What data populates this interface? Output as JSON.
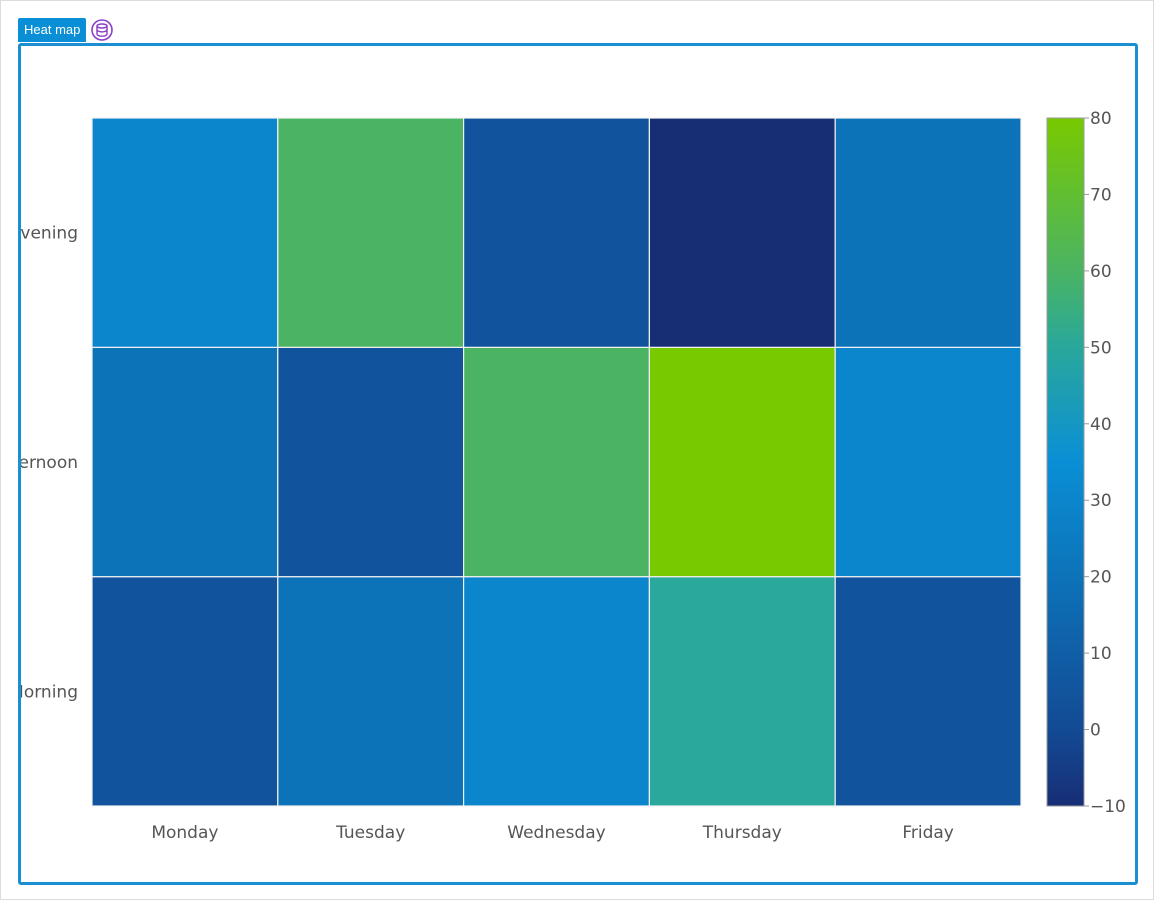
{
  "panel": {
    "title": "Heat map",
    "title_bg": "#0a8fd6",
    "border_color": "#1b8fd1",
    "icon": "database-icon"
  },
  "chart_data": {
    "type": "heatmap",
    "title": "",
    "xlabel": "",
    "ylabel": "",
    "x": [
      "Monday",
      "Tuesday",
      "Wednesday",
      "Thursday",
      "Friday"
    ],
    "y": [
      "Morning",
      "Afternoon",
      "Evening"
    ],
    "y_tick_labels_visible": [
      "Morning",
      "ernoon",
      "Evening"
    ],
    "z": [
      [
        5,
        20,
        30,
        50,
        5
      ],
      [
        20,
        5,
        60,
        80,
        30
      ],
      [
        30,
        60,
        5,
        -10,
        20
      ]
    ],
    "zlim": [
      -10,
      80
    ],
    "colorbar": {
      "ticks": [
        -10,
        0,
        10,
        20,
        30,
        40,
        50,
        60,
        70,
        80
      ],
      "tick_labels": [
        "−10",
        "0",
        "10",
        "20",
        "30",
        "40",
        "50",
        "60",
        "70",
        "80"
      ],
      "placement": "right",
      "colorscale": [
        [
          0.0,
          "#172e75"
        ],
        [
          0.11,
          "#134a94"
        ],
        [
          0.33,
          "#0d72b8"
        ],
        [
          0.5,
          "#0a8fd6"
        ],
        [
          0.67,
          "#2aa89a"
        ],
        [
          0.78,
          "#4bb462"
        ],
        [
          1.0,
          "#78c900"
        ]
      ]
    },
    "cell_border_color": "#f2f2f2",
    "grid": false
  }
}
